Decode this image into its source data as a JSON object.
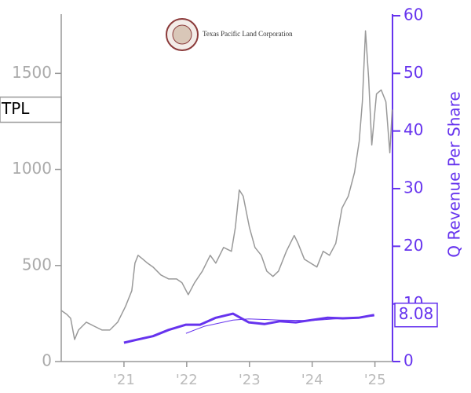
{
  "chart_data": {
    "type": "line",
    "logo_text": "Texas Pacific Land Corporation",
    "y2label": "Q Revenue Per Share",
    "xlim": [
      2020,
      2025.28
    ],
    "xticks": [
      {
        "value": 2021,
        "label": "'21"
      },
      {
        "value": 2022,
        "label": "'22"
      },
      {
        "value": 2023,
        "label": "'23"
      },
      {
        "value": 2024,
        "label": "'24"
      },
      {
        "value": 2025,
        "label": "'25"
      }
    ],
    "ylim": [
      0,
      1800
    ],
    "yticks": [
      0,
      500,
      1000,
      1500
    ],
    "y2lim": [
      0,
      60
    ],
    "y2ticks": [
      0,
      10,
      20,
      30,
      40,
      50,
      60
    ],
    "series": [
      {
        "name": "TPL",
        "color": "#999999",
        "axis": "y",
        "width": 1.5,
        "x": [
          2020,
          2020.088,
          2020.15,
          2020.213,
          2020.275,
          2020.4,
          2020.525,
          2020.65,
          2020.775,
          2020.9,
          2021.025,
          2021.125,
          2021.175,
          2021.225,
          2021.3,
          2021.375,
          2021.463,
          2021.588,
          2021.713,
          2021.838,
          2021.925,
          2022.025,
          2022.125,
          2022.25,
          2022.375,
          2022.463,
          2022.588,
          2022.713,
          2022.775,
          2022.838,
          2022.9,
          2023,
          2023.088,
          2023.188,
          2023.275,
          2023.375,
          2023.463,
          2023.588,
          2023.713,
          2023.775,
          2023.875,
          2023.975,
          2024.075,
          2024.175,
          2024.275,
          2024.375,
          2024.475,
          2024.575,
          2024.675,
          2024.75,
          2024.8,
          2024.85,
          2024.9,
          2024.95,
          2025.025,
          2025.1,
          2025.175,
          2025.238,
          2025.275
        ],
        "values": [
          266,
          246,
          225,
          115,
          164,
          205,
          184,
          164,
          164,
          205,
          287,
          369,
          512,
          553,
          533,
          512,
          492,
          451,
          430,
          430,
          410,
          348,
          410,
          471,
          553,
          512,
          594,
          574,
          697,
          893,
          861,
          697,
          594,
          553,
          471,
          443,
          471,
          574,
          656,
          615,
          533,
          512,
          492,
          574,
          553,
          615,
          799,
          861,
          984,
          1147,
          1352,
          1721,
          1475,
          1127,
          1393,
          1414,
          1352,
          1086,
          1311
        ]
      },
      {
        "color": "#6633ee",
        "axis": "y2",
        "width": 3,
        "x": [
          2021,
          2021.213,
          2021.463,
          2021.713,
          2021.988,
          2022.213,
          2022.463,
          2022.738,
          2022.988,
          2023.238,
          2023.488,
          2023.738,
          2023.988,
          2024.238,
          2024.488,
          2024.738,
          2024.988
        ],
        "values": [
          3.27,
          3.8,
          4.4,
          5.5,
          6.4,
          6.4,
          7.6,
          8.3,
          6.8,
          6.5,
          7.0,
          6.8,
          7.2,
          7.6,
          7.5,
          7.6,
          8.08
        ],
        "value_labels": [
          null,
          null,
          null,
          null,
          null,
          null,
          null,
          null,
          null,
          null,
          null,
          null,
          null,
          null,
          null,
          null,
          "8.08"
        ]
      },
      {
        "color": "#6633ee",
        "axis": "y2",
        "width": 1,
        "x": [
          2021.988,
          2022.275,
          2022.738,
          2022.988,
          2023.488,
          2023.988,
          2024.488,
          2024.988
        ],
        "values": [
          4.9,
          6.1,
          7.2,
          7.4,
          7.2,
          7.1,
          7.5,
          7.9
        ]
      }
    ]
  }
}
